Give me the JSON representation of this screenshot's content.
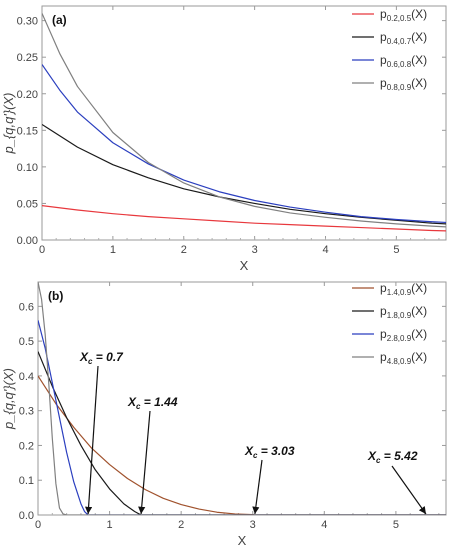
{
  "chart_data": [
    {
      "type": "line",
      "panel_label": "(a)",
      "xlabel": "X",
      "ylabel": "p_{q,q'}(X)",
      "xlim": [
        0,
        5.7
      ],
      "ylim": [
        0,
        0.32
      ],
      "xticks": [
        0,
        1,
        2,
        3,
        4,
        5
      ],
      "yticks": [
        0.0,
        0.05,
        0.1,
        0.15,
        0.2,
        0.25,
        0.3
      ],
      "ytick_labels": [
        "0.00",
        "0.05",
        "0.10",
        "0.15",
        "0.20",
        "0.25",
        "0.30"
      ],
      "grid": false,
      "legend_position": "top-right",
      "series": [
        {
          "name": "p0.2,0.5(X)",
          "name_main": "p",
          "name_sub": "0.2,0.5",
          "name_tail": "(X)",
          "color": "#e8383d",
          "x": [
            0,
            0.5,
            1,
            1.5,
            2,
            2.5,
            3,
            3.5,
            4,
            4.5,
            5,
            5.5,
            5.7
          ],
          "y": [
            0.047,
            0.041,
            0.036,
            0.032,
            0.029,
            0.026,
            0.023,
            0.021,
            0.019,
            0.017,
            0.015,
            0.013,
            0.0125
          ]
        },
        {
          "name": "p0.4,0.7(X)",
          "name_main": "p",
          "name_sub": "0.4,0.7",
          "name_tail": "(X)",
          "color": "#1a1a1a",
          "x": [
            0,
            0.5,
            1,
            1.5,
            2,
            2.5,
            3,
            3.5,
            4,
            4.5,
            5,
            5.5,
            5.7
          ],
          "y": [
            0.158,
            0.127,
            0.103,
            0.085,
            0.07,
            0.059,
            0.05,
            0.042,
            0.036,
            0.031,
            0.027,
            0.023,
            0.022
          ]
        },
        {
          "name": "p0.6,0.8(X)",
          "name_main": "p",
          "name_sub": "0.6,0.8",
          "name_tail": "(X)",
          "color": "#2b3fbf",
          "x": [
            0,
            0.25,
            0.5,
            1,
            1.5,
            2,
            2.5,
            3,
            3.5,
            4,
            4.5,
            5,
            5.5,
            5.7
          ],
          "y": [
            0.24,
            0.205,
            0.175,
            0.133,
            0.104,
            0.082,
            0.066,
            0.054,
            0.045,
            0.038,
            0.032,
            0.028,
            0.025,
            0.024
          ]
        },
        {
          "name": "p0.8,0.9(X)",
          "name_main": "p",
          "name_sub": "0.8,0.9",
          "name_tail": "(X)",
          "color": "#808080",
          "x": [
            0,
            0.25,
            0.5,
            1,
            1.5,
            2,
            2.5,
            3,
            3.5,
            4,
            4.5,
            5,
            5.5,
            5.7
          ],
          "y": [
            0.31,
            0.255,
            0.21,
            0.147,
            0.106,
            0.078,
            0.059,
            0.046,
            0.037,
            0.031,
            0.026,
            0.022,
            0.019,
            0.018
          ]
        }
      ]
    },
    {
      "type": "line",
      "panel_label": "(b)",
      "xlabel": "X",
      "ylabel": "p_{q,q'}(X)",
      "xlim": [
        0,
        5.7
      ],
      "ylim": [
        0,
        0.67
      ],
      "xticks": [
        0,
        1,
        2,
        3,
        4,
        5
      ],
      "yticks": [
        0.0,
        0.1,
        0.2,
        0.3,
        0.4,
        0.5,
        0.6
      ],
      "ytick_labels": [
        "0.0",
        "0.1",
        "0.2",
        "0.3",
        "0.4",
        "0.5",
        "0.6"
      ],
      "grid": false,
      "legend_position": "top-right",
      "series": [
        {
          "name": "p1.4,0.9(X)",
          "name_main": "p",
          "name_sub": "1.4,0.9",
          "name_tail": "(X)",
          "color": "#a0522d",
          "x": [
            0,
            0.25,
            0.5,
            0.75,
            1,
            1.25,
            1.5,
            1.75,
            2,
            2.25,
            2.5,
            2.75,
            3,
            3.03,
            3.5,
            4,
            4.5,
            5,
            5.42,
            5.7
          ],
          "y": [
            0.4,
            0.32,
            0.252,
            0.192,
            0.145,
            0.105,
            0.073,
            0.048,
            0.03,
            0.017,
            0.008,
            0.003,
            0.001,
            0.0,
            0.0,
            0.0,
            0.0,
            0.0,
            0.0,
            0.0
          ]
        },
        {
          "name": "p1.8,0.9(X)",
          "name_main": "p",
          "name_sub": "1.8,0.9",
          "name_tail": "(X)",
          "color": "#1a1a1a",
          "x": [
            0,
            0.2,
            0.4,
            0.6,
            0.8,
            1.0,
            1.2,
            1.35,
            1.44,
            1.7,
            2,
            3,
            4,
            5,
            5.7
          ],
          "y": [
            0.47,
            0.37,
            0.28,
            0.2,
            0.13,
            0.075,
            0.032,
            0.01,
            0.0,
            0.0,
            0.0,
            0.0,
            0.0,
            0.0,
            0.0
          ]
        },
        {
          "name": "p2.8,0.9(X)",
          "name_main": "p",
          "name_sub": "2.8,0.9",
          "name_tail": "(X)",
          "color": "#2b3fbf",
          "x": [
            0,
            0.1,
            0.2,
            0.3,
            0.4,
            0.5,
            0.6,
            0.65,
            0.7,
            1,
            2,
            3,
            4,
            5,
            5.7
          ],
          "y": [
            0.56,
            0.48,
            0.38,
            0.28,
            0.18,
            0.095,
            0.032,
            0.01,
            0.0,
            0.0,
            0.0,
            0.0,
            0.0,
            0.0,
            0.0
          ]
        },
        {
          "name": "p4.8,0.9(X)",
          "name_main": "p",
          "name_sub": "4.8,0.9",
          "name_tail": "(X)",
          "color": "#808080",
          "x": [
            0,
            0.05,
            0.1,
            0.15,
            0.2,
            0.25,
            0.3,
            0.35,
            0.4,
            0.5,
            1,
            2,
            3,
            4,
            5,
            5.7
          ],
          "y": [
            0.67,
            0.62,
            0.52,
            0.38,
            0.22,
            0.09,
            0.02,
            0.003,
            0.0,
            0.0,
            0.0,
            0.0,
            0.0,
            0.0,
            0.0,
            0.0
          ]
        }
      ],
      "annotations": [
        {
          "text_main": "X",
          "text_sub": "c",
          "text_value": " = 0.7",
          "target_x": 0.7,
          "target_y": 0.0
        },
        {
          "text_main": "X",
          "text_sub": "c",
          "text_value": " = 1.44",
          "target_x": 1.44,
          "target_y": 0.0
        },
        {
          "text_main": "X",
          "text_sub": "c",
          "text_value": " = 3.03",
          "target_x": 3.03,
          "target_y": 0.0
        },
        {
          "text_main": "X",
          "text_sub": "c",
          "text_value": " = 5.42",
          "target_x": 5.42,
          "target_y": 0.0
        }
      ]
    }
  ]
}
